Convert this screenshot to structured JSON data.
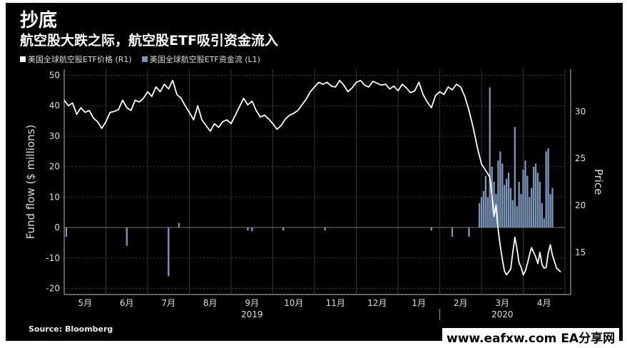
{
  "title": "抄底",
  "subtitle": "航空股大跌之际，航空股ETF吸引资金流入",
  "legend": {
    "price_label": "美国全球航空股ETF价格 (R1)",
    "flow_label": "美国全球航空股ETF资金流 (L1)",
    "price_color": "#ffffff",
    "flow_color": "#7b95b8"
  },
  "source": "Source: Bloomberg",
  "watermark": "www.eafxw.com  EA分享网",
  "chart_data": {
    "type": "bar+line",
    "left_axis": {
      "label": "Fund flow ($ millions)",
      "ylim": [
        -22,
        52
      ],
      "ticks": [
        50,
        40,
        30,
        20,
        10,
        0,
        -10,
        -20
      ]
    },
    "right_axis": {
      "label": "Price",
      "ylim": [
        10.5,
        34.5
      ],
      "ticks": [
        30,
        25,
        20,
        15
      ]
    },
    "x_axis": {
      "months": [
        "5月",
        "6月",
        "7月",
        "8月",
        "9月",
        "10月",
        "11月",
        "12月",
        "1月",
        "2月",
        "3月",
        "4月"
      ],
      "years": [
        "2019",
        "2020"
      ],
      "xlim": [
        0,
        240
      ]
    },
    "flow": [
      [
        1,
        -3
      ],
      [
        30,
        -6
      ],
      [
        50,
        -16
      ],
      [
        55,
        1.5
      ],
      [
        88,
        -1
      ],
      [
        90,
        -1.2
      ],
      [
        105,
        -1
      ],
      [
        125,
        -1
      ],
      [
        176,
        -1
      ],
      [
        186,
        -3
      ],
      [
        194,
        -3
      ],
      [
        199,
        8
      ],
      [
        200,
        10
      ],
      [
        201,
        12
      ],
      [
        202,
        17
      ],
      [
        203,
        10
      ],
      [
        204,
        46
      ],
      [
        205,
        20
      ],
      [
        206,
        15
      ],
      [
        207,
        11
      ],
      [
        208,
        22
      ],
      [
        209,
        25
      ],
      [
        210,
        21
      ],
      [
        211,
        14
      ],
      [
        212,
        16
      ],
      [
        213,
        18
      ],
      [
        214,
        13
      ],
      [
        215,
        9
      ],
      [
        216,
        33
      ],
      [
        217,
        7
      ],
      [
        218,
        15
      ],
      [
        219,
        11
      ],
      [
        220,
        19
      ],
      [
        221,
        22
      ],
      [
        222,
        17
      ],
      [
        223,
        10
      ],
      [
        224,
        13
      ],
      [
        225,
        20
      ],
      [
        226,
        21
      ],
      [
        227,
        18
      ],
      [
        228,
        15
      ],
      [
        229,
        8
      ],
      [
        230,
        3
      ],
      [
        231,
        25
      ],
      [
        232,
        26
      ],
      [
        233,
        11
      ],
      [
        234,
        13
      ]
    ],
    "price": [
      [
        0,
        31.2
      ],
      [
        2,
        30.6
      ],
      [
        4,
        30.9
      ],
      [
        6,
        29.7
      ],
      [
        8,
        30.4
      ],
      [
        10,
        29.9
      ],
      [
        12,
        30.1
      ],
      [
        14,
        29.3
      ],
      [
        16,
        28.9
      ],
      [
        18,
        28.2
      ],
      [
        20,
        28.9
      ],
      [
        22,
        29.9
      ],
      [
        24,
        30.0
      ],
      [
        26,
        30.2
      ],
      [
        28,
        31.2
      ],
      [
        30,
        30.4
      ],
      [
        32,
        30.1
      ],
      [
        34,
        31.2
      ],
      [
        36,
        31.0
      ],
      [
        38,
        31.4
      ],
      [
        40,
        32.1
      ],
      [
        42,
        31.6
      ],
      [
        44,
        32.6
      ],
      [
        46,
        32.1
      ],
      [
        48,
        32.9
      ],
      [
        50,
        32.4
      ],
      [
        52,
        33.3
      ],
      [
        54,
        31.8
      ],
      [
        56,
        31.4
      ],
      [
        58,
        30.6
      ],
      [
        60,
        29.9
      ],
      [
        62,
        29.1
      ],
      [
        64,
        30.6
      ],
      [
        66,
        29.1
      ],
      [
        68,
        28.5
      ],
      [
        70,
        27.9
      ],
      [
        72,
        28.7
      ],
      [
        74,
        28.3
      ],
      [
        76,
        28.9
      ],
      [
        78,
        29.1
      ],
      [
        80,
        28.7
      ],
      [
        82,
        29.6
      ],
      [
        84,
        30.5
      ],
      [
        86,
        31.4
      ],
      [
        88,
        30.7
      ],
      [
        90,
        31.1
      ],
      [
        92,
        30.1
      ],
      [
        94,
        29.4
      ],
      [
        96,
        29.6
      ],
      [
        98,
        29.2
      ],
      [
        100,
        28.7
      ],
      [
        102,
        28.1
      ],
      [
        104,
        28.5
      ],
      [
        106,
        29.2
      ],
      [
        108,
        29.6
      ],
      [
        110,
        29.8
      ],
      [
        112,
        30.1
      ],
      [
        114,
        30.7
      ],
      [
        116,
        31.3
      ],
      [
        118,
        32.1
      ],
      [
        120,
        32.6
      ],
      [
        122,
        33.1
      ],
      [
        124,
        32.9
      ],
      [
        126,
        33.1
      ],
      [
        128,
        32.7
      ],
      [
        130,
        32.6
      ],
      [
        132,
        33.3
      ],
      [
        134,
        32.8
      ],
      [
        136,
        32.1
      ],
      [
        138,
        32.5
      ],
      [
        140,
        33.1
      ],
      [
        142,
        33.3
      ],
      [
        144,
        32.8
      ],
      [
        146,
        32.6
      ],
      [
        148,
        33.2
      ],
      [
        150,
        33.0
      ],
      [
        152,
        32.8
      ],
      [
        154,
        32.9
      ],
      [
        156,
        32.4
      ],
      [
        158,
        32.7
      ],
      [
        160,
        32.2
      ],
      [
        162,
        32.9
      ],
      [
        164,
        32.5
      ],
      [
        166,
        32.0
      ],
      [
        168,
        32.2
      ],
      [
        170,
        33.1
      ],
      [
        172,
        31.8
      ],
      [
        174,
        31.0
      ],
      [
        176,
        30.4
      ],
      [
        178,
        31.7
      ],
      [
        180,
        32.1
      ],
      [
        182,
        31.8
      ],
      [
        184,
        32.6
      ],
      [
        186,
        32.3
      ],
      [
        188,
        32.9
      ],
      [
        190,
        32.6
      ],
      [
        192,
        31.6
      ],
      [
        194,
        30.1
      ],
      [
        196,
        28.3
      ],
      [
        198,
        26.2
      ],
      [
        200,
        24.4
      ],
      [
        202,
        23.7
      ],
      [
        204,
        23.0
      ],
      [
        205,
        21.1
      ],
      [
        206,
        18.8
      ],
      [
        207,
        20.1
      ],
      [
        208,
        17.4
      ],
      [
        209,
        15.7
      ],
      [
        210,
        14.2
      ],
      [
        211,
        13.0
      ],
      [
        212,
        12.6
      ],
      [
        214,
        13.2
      ],
      [
        215,
        15.0
      ],
      [
        216,
        16.6
      ],
      [
        217,
        15.4
      ],
      [
        218,
        13.9
      ],
      [
        219,
        13.4
      ],
      [
        220,
        12.6
      ],
      [
        221,
        13.0
      ],
      [
        222,
        13.8
      ],
      [
        223,
        14.7
      ],
      [
        224,
        15.5
      ],
      [
        225,
        15.0
      ],
      [
        226,
        14.5
      ],
      [
        227,
        13.8
      ],
      [
        228,
        15.0
      ],
      [
        229,
        13.7
      ],
      [
        230,
        13.3
      ],
      [
        231,
        13.4
      ],
      [
        232,
        14.9
      ],
      [
        233,
        15.8
      ],
      [
        234,
        14.7
      ],
      [
        236,
        13.3
      ],
      [
        238,
        12.9
      ]
    ]
  }
}
